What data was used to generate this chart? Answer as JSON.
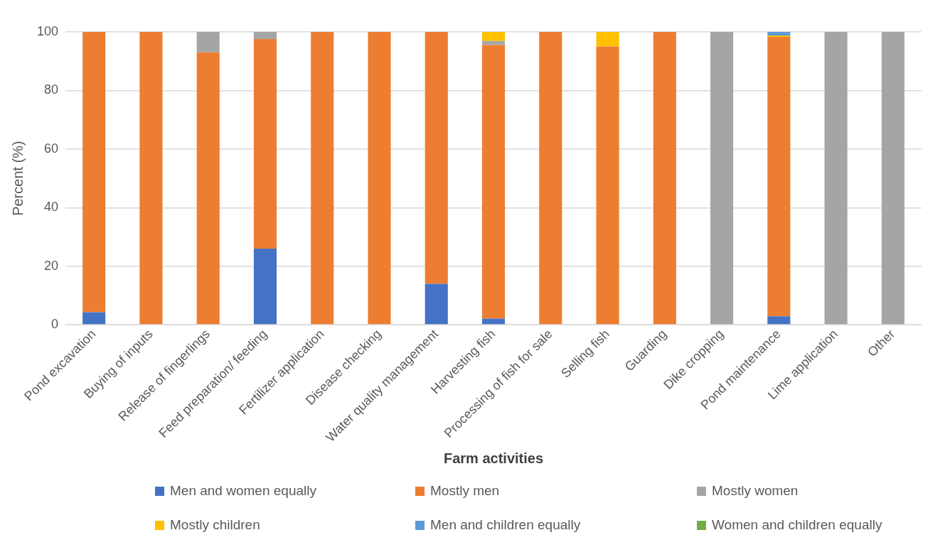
{
  "chart_data": {
    "type": "bar",
    "stacked": true,
    "xlabel": "Farm activities",
    "ylabel": "Percent (%)",
    "categories": [
      "Pond excavation",
      "Buying of inputs",
      "Release of fingerlings",
      "Feed preparation/ feeding",
      "Fertilizer application",
      "Disease checking",
      "Water quality management",
      "Harvesting fish",
      "Processing of fish for sale",
      "Selling fish",
      "Guarding",
      "Dike cropping",
      "Pond maintenance",
      "Lime application",
      "Other"
    ],
    "series": [
      {
        "name": "Men and women equally",
        "color": "#4472c4",
        "values": [
          4.3,
          0,
          0,
          26,
          0,
          0,
          14,
          2.1,
          0,
          0,
          0,
          0,
          2.9,
          0,
          0
        ]
      },
      {
        "name": "Mostly men",
        "color": "#ed7d31",
        "values": [
          95.7,
          100,
          93,
          71.6,
          100,
          100,
          86,
          93.4,
          100,
          95,
          100,
          0,
          95.4,
          0,
          0
        ]
      },
      {
        "name": "Mostly women",
        "color": "#a5a5a5",
        "values": [
          0,
          0,
          7,
          2.4,
          0,
          0,
          0,
          1.4,
          0,
          0,
          0,
          100,
          0,
          100,
          100
        ]
      },
      {
        "name": "Mostly children",
        "color": "#ffc000",
        "values": [
          0,
          0,
          0,
          0,
          0,
          0,
          0,
          3.1,
          0,
          5,
          0,
          0,
          0.5,
          0,
          0
        ]
      },
      {
        "name": "Men and children equally",
        "color": "#5b9bd5",
        "values": [
          0,
          0,
          0,
          0,
          0,
          0,
          0,
          0,
          0,
          0,
          0,
          0,
          1.2,
          0,
          0
        ]
      },
      {
        "name": "Women and children equally",
        "color": "#70ad47",
        "values": [
          0,
          0,
          0,
          0,
          0,
          0,
          0,
          0,
          0,
          0,
          0,
          0,
          0,
          0,
          0
        ]
      }
    ],
    "ylim": [
      0,
      100
    ],
    "yticks": [
      0,
      20,
      40,
      60,
      80,
      100
    ],
    "grid": "y",
    "legend": "bottom"
  }
}
